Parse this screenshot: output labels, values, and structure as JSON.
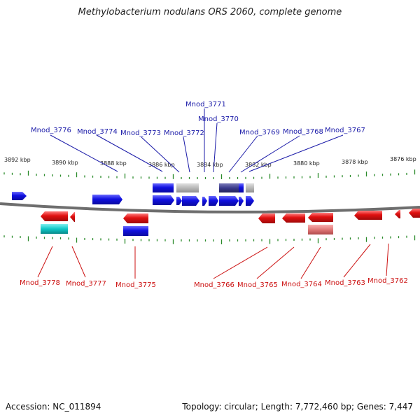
{
  "title": "Methylobacterium nodulans ORS 2060, complete genome",
  "footer": {
    "accession": "Accession: NC_011894",
    "summary": "Topology: circular; Length: 7,772,460 bp; Genes: 7,447"
  },
  "scale_labels": [
    "3892 kbp",
    "3890 kbp",
    "3888 kbp",
    "3886 kbp",
    "3884 kbp",
    "3882 kbp",
    "3880 kbp",
    "3878 kbp",
    "3876 kbp"
  ],
  "top_genes": [
    "Mnod_3776",
    "Mnod_3774",
    "Mnod_3773",
    "Mnod_3772",
    "Mnod_3771",
    "Mnod_3770",
    "Mnod_3769",
    "Mnod_3768",
    "Mnod_3767"
  ],
  "bottom_genes": [
    "Mnod_3778",
    "Mnod_3777",
    "Mnod_3775",
    "Mnod_3766",
    "Mnod_3765",
    "Mnod_3764",
    "Mnod_3763",
    "Mnod_3762"
  ],
  "colors": {
    "forward": "#1010e0",
    "reverse": "#e01010",
    "gray": "#b8b8b8",
    "navy": "#3a3a8c",
    "cyan": "#10c8c8",
    "pink": "#e07878",
    "tick": "#2a8a2a",
    "backbone": "#707070"
  }
}
